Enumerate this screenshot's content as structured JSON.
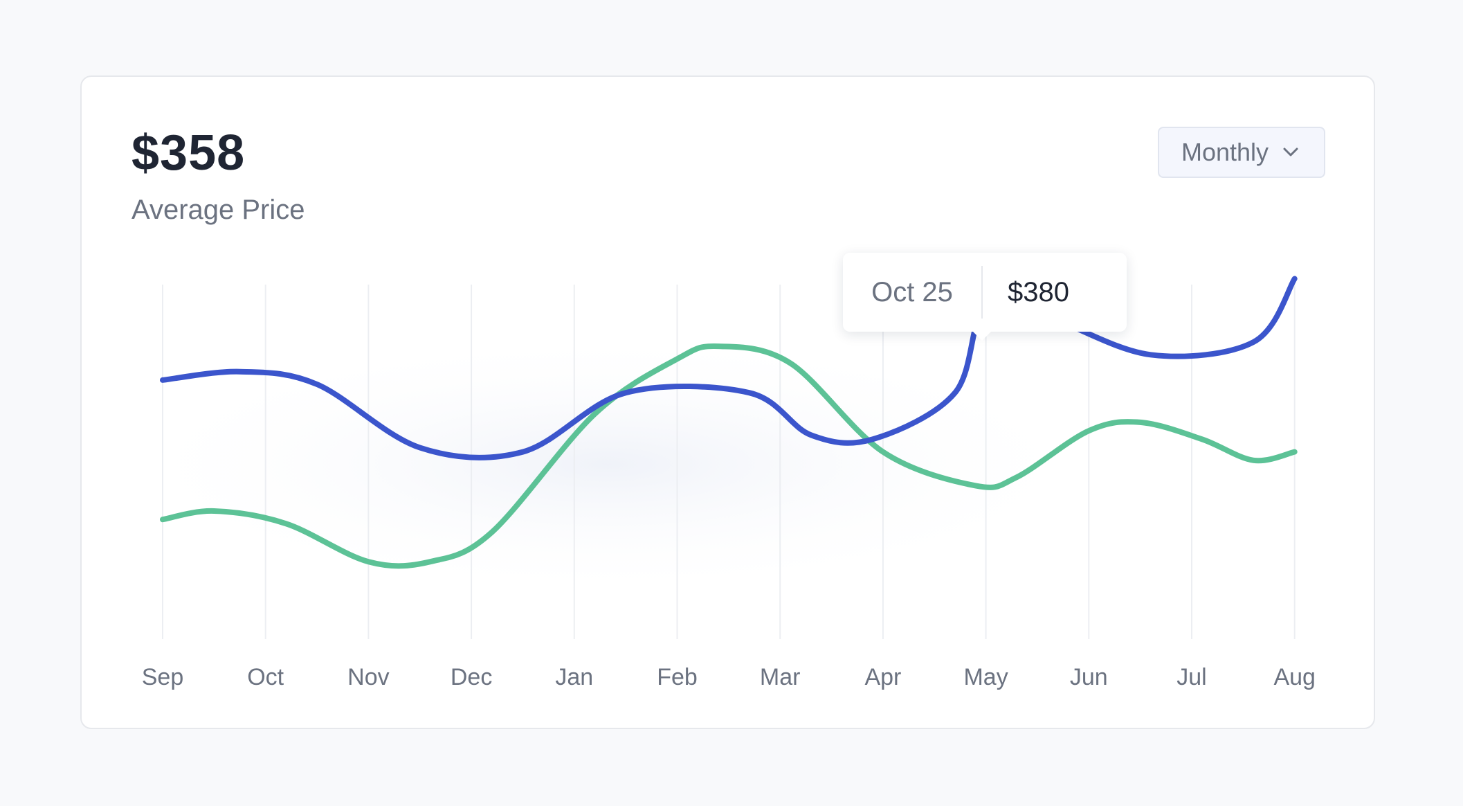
{
  "header": {
    "value": "$358",
    "subtitle": "Average Price"
  },
  "period_select": {
    "label": "Monthly"
  },
  "tooltip": {
    "date": "Oct 25",
    "value": "$380"
  },
  "colors": {
    "series_blue": "#3b55cc",
    "series_green": "#5cc296",
    "grid": "#eceef2"
  },
  "chart_data": {
    "type": "line",
    "title": "",
    "xlabel": "",
    "ylabel": "",
    "categories": [
      "Sep",
      "Oct",
      "Nov",
      "Dec",
      "Jan",
      "Feb",
      "Mar",
      "Apr",
      "May",
      "Jun",
      "Jul",
      "Aug"
    ],
    "x": [
      0,
      1,
      2,
      3,
      4,
      5,
      6,
      7,
      8,
      9,
      10,
      11
    ],
    "ylim": [
      0,
      100
    ],
    "grid": true,
    "series": [
      {
        "name": "",
        "color": "#3b55cc",
        "points": [
          [
            0,
            61
          ],
          [
            0.75,
            63
          ],
          [
            1.5,
            60
          ],
          [
            2.5,
            45
          ],
          [
            3.5,
            44
          ],
          [
            4.5,
            58
          ],
          [
            5.7,
            58
          ],
          [
            6.3,
            48
          ],
          [
            6.9,
            47
          ],
          [
            7.7,
            58
          ],
          [
            8.0,
            79
          ],
          [
            8.6,
            76
          ],
          [
            9.6,
            67
          ],
          [
            10.6,
            70
          ],
          [
            11.0,
            85
          ]
        ]
      },
      {
        "name": "",
        "color": "#5cc296",
        "points": [
          [
            0,
            28
          ],
          [
            0.5,
            30
          ],
          [
            1.2,
            27
          ],
          [
            2.0,
            18
          ],
          [
            2.6,
            18
          ],
          [
            3.2,
            25
          ],
          [
            4.2,
            53
          ],
          [
            5.0,
            66
          ],
          [
            5.4,
            69
          ],
          [
            6.1,
            65
          ],
          [
            7.0,
            44
          ],
          [
            7.9,
            36
          ],
          [
            8.3,
            38
          ],
          [
            9.0,
            49
          ],
          [
            9.5,
            51
          ],
          [
            10.1,
            47
          ],
          [
            10.6,
            42
          ],
          [
            11.0,
            44
          ]
        ]
      }
    ],
    "highlight": {
      "series_index": 0,
      "x": 8,
      "y": 79,
      "label": "Oct 25",
      "value": "$380"
    }
  }
}
